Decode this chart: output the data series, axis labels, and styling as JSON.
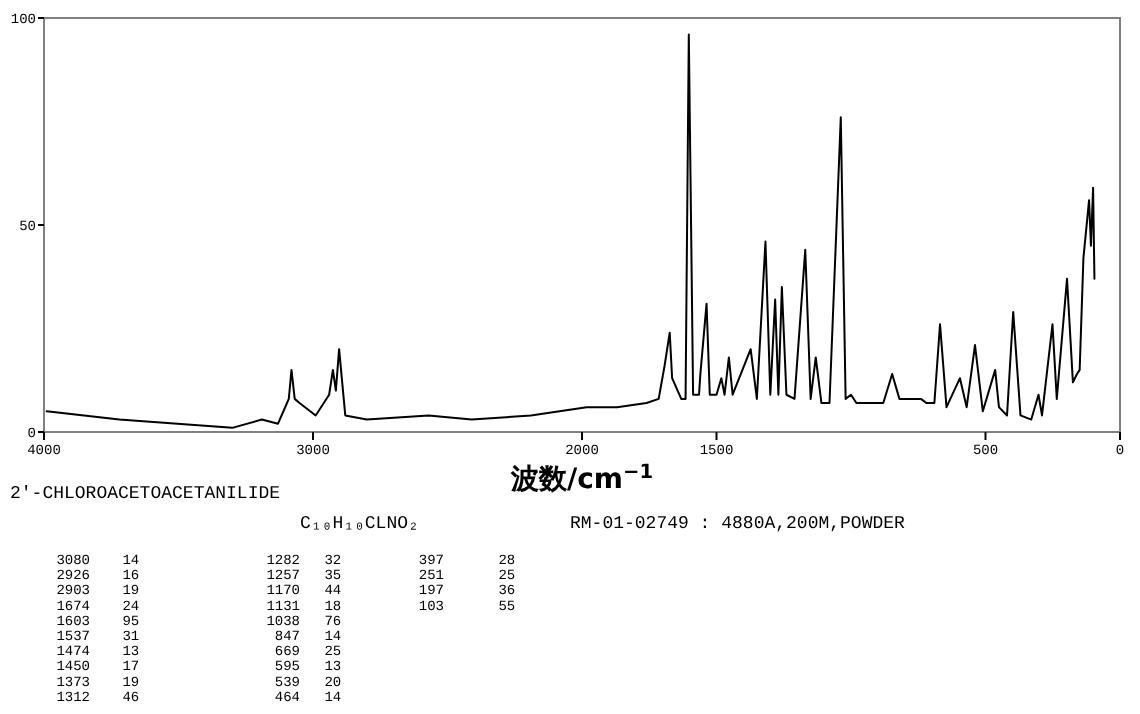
{
  "chart_data": {
    "type": "line",
    "title": "2'-CHLOROACETOACETANILIDE",
    "subtitle": "C₁₀H₁₀CLNO₂",
    "xlabel": "波数/cm$^{−1}$",
    "xlim": [
      4000,
      0
    ],
    "xticks": [
      4000,
      3000,
      2000,
      1500,
      500,
      0
    ],
    "ylim": [
      0,
      100
    ],
    "yticks": [
      0,
      50,
      100
    ],
    "grid": false,
    "series": [
      {
        "color": "#000000",
        "x": [
          3990,
          3720,
          3300,
          3190,
          3130,
          3090,
          3080,
          3068,
          3050,
          2990,
          2940,
          2926,
          2915,
          2903,
          2880,
          2800,
          2570,
          2410,
          2190,
          1983,
          1870,
          1760,
          1715,
          1693,
          1674,
          1665,
          1631,
          1615,
          1603,
          1587,
          1565,
          1560,
          1537,
          1525,
          1500,
          1482,
          1470,
          1454,
          1440,
          1373,
          1350,
          1318,
          1300,
          1282,
          1270,
          1257,
          1240,
          1210,
          1170,
          1150,
          1131,
          1110,
          1080,
          1038,
          1020,
          1000,
          980,
          940,
          880,
          847,
          820,
          760,
          740,
          720,
          690,
          669,
          645,
          595,
          570,
          539,
          510,
          464,
          450,
          420,
          397,
          370,
          330,
          303,
          290,
          251,
          235,
          197,
          175,
          160,
          150,
          136,
          115,
          108,
          100,
          95
        ],
        "values": [
          5,
          3,
          1,
          3,
          2,
          8,
          15,
          8,
          7,
          4,
          9,
          15,
          10,
          20,
          4,
          3,
          4,
          3,
          4,
          6,
          6,
          7,
          8,
          16,
          24,
          13,
          8,
          8,
          96,
          9,
          9,
          14,
          31,
          9,
          9,
          13,
          9,
          18,
          9,
          20,
          8,
          46,
          9,
          32,
          9,
          35,
          9,
          8,
          44,
          8,
          18,
          7,
          7,
          76,
          8,
          9,
          7,
          7,
          7,
          14,
          8,
          8,
          8,
          7,
          7,
          26,
          6,
          13,
          6,
          21,
          5,
          15,
          6,
          4,
          29,
          4,
          3,
          9,
          4,
          26,
          8,
          37,
          12,
          14,
          15,
          42,
          56,
          45,
          59,
          37
        ]
      }
    ],
    "annotations": [
      "RM-01-02749 : 4880A,200M,POWDER",
      "3080 14",
      "2926 16",
      "2903 19",
      "1674 24",
      "1603 95",
      "1537 31",
      "1474 13",
      "1450 17",
      "1373 19",
      "1312 46",
      "1282 32",
      "1257 35",
      "1170 44",
      "1131 18",
      "1038 76",
      "847 14",
      "669 25",
      "595 13",
      "539 20",
      "464 14",
      "397 28",
      "251 25",
      "197 36",
      "103 55"
    ]
  }
}
